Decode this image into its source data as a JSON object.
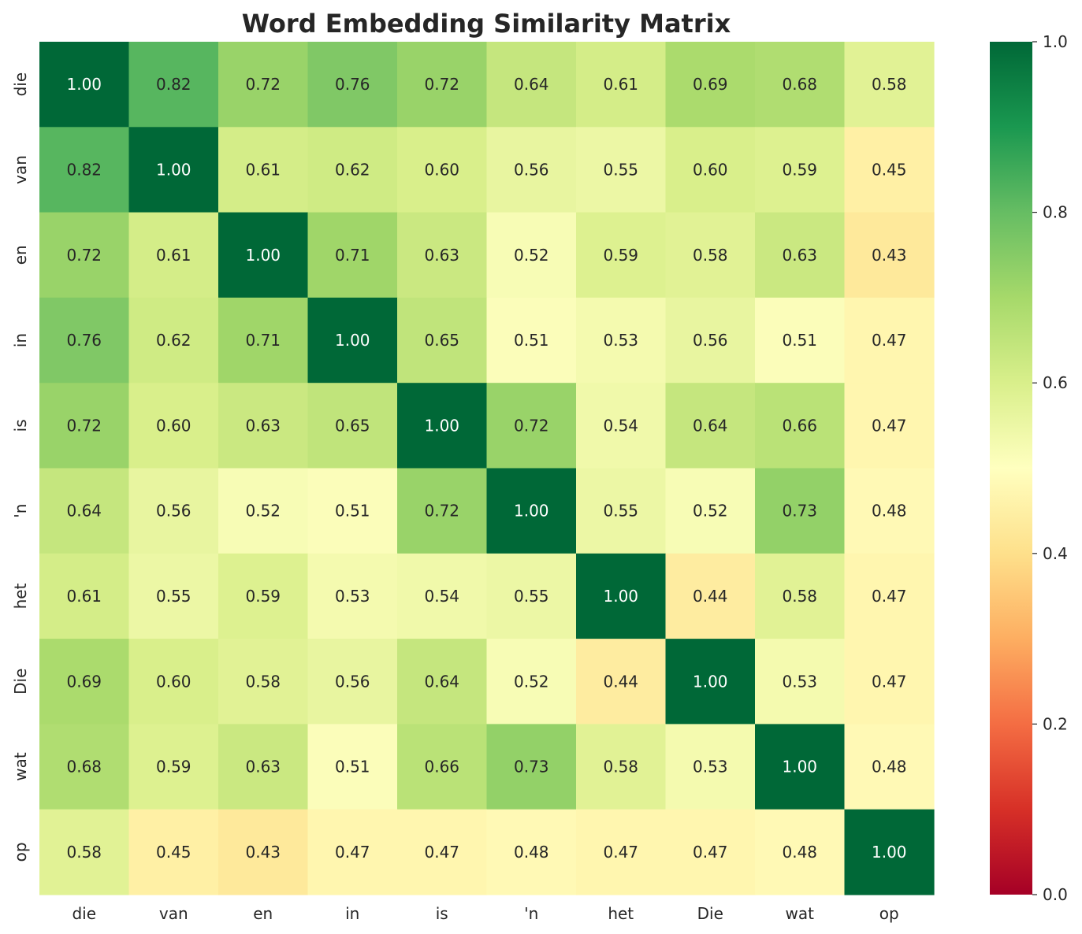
{
  "chart_data": {
    "type": "heatmap",
    "title": "Word Embedding Similarity Matrix",
    "xlabel": "",
    "ylabel": "",
    "row_labels": [
      "die",
      "van",
      "en",
      "in",
      "is",
      "'n",
      "het",
      "Die",
      "wat",
      "op"
    ],
    "col_labels": [
      "die",
      "van",
      "en",
      "in",
      "is",
      "'n",
      "het",
      "Die",
      "wat",
      "op"
    ],
    "values": [
      [
        1.0,
        0.82,
        0.72,
        0.76,
        0.72,
        0.64,
        0.61,
        0.69,
        0.68,
        0.58
      ],
      [
        0.82,
        1.0,
        0.61,
        0.62,
        0.6,
        0.56,
        0.55,
        0.6,
        0.59,
        0.45
      ],
      [
        0.72,
        0.61,
        1.0,
        0.71,
        0.63,
        0.52,
        0.59,
        0.58,
        0.63,
        0.43
      ],
      [
        0.76,
        0.62,
        0.71,
        1.0,
        0.65,
        0.51,
        0.53,
        0.56,
        0.51,
        0.47
      ],
      [
        0.72,
        0.6,
        0.63,
        0.65,
        1.0,
        0.72,
        0.54,
        0.64,
        0.66,
        0.47
      ],
      [
        0.64,
        0.56,
        0.52,
        0.51,
        0.72,
        1.0,
        0.55,
        0.52,
        0.73,
        0.48
      ],
      [
        0.61,
        0.55,
        0.59,
        0.53,
        0.54,
        0.55,
        1.0,
        0.44,
        0.58,
        0.47
      ],
      [
        0.69,
        0.6,
        0.58,
        0.56,
        0.64,
        0.52,
        0.44,
        1.0,
        0.53,
        0.47
      ],
      [
        0.68,
        0.59,
        0.63,
        0.51,
        0.66,
        0.73,
        0.58,
        0.53,
        1.0,
        0.48
      ],
      [
        0.58,
        0.45,
        0.43,
        0.47,
        0.47,
        0.48,
        0.47,
        0.47,
        0.48,
        1.0
      ]
    ],
    "value_format": "0.00",
    "colormap": "RdYlGn",
    "vmin": 0.0,
    "vmax": 1.0,
    "colorbar_ticks": [
      0.0,
      0.2,
      0.4,
      0.6,
      0.8,
      1.0
    ],
    "colorbar_tick_labels": [
      "0.0",
      "0.2",
      "0.4",
      "0.6",
      "0.8",
      "1.0"
    ],
    "colorbar_stops": [
      "#a50026",
      "#d73027",
      "#f46d43",
      "#fdae61",
      "#fee08b",
      "#ffffbf",
      "#d9ef8b",
      "#a6d96a",
      "#66bd63",
      "#1a9850",
      "#006837"
    ],
    "legend": "colorbar-right",
    "grid": false
  }
}
